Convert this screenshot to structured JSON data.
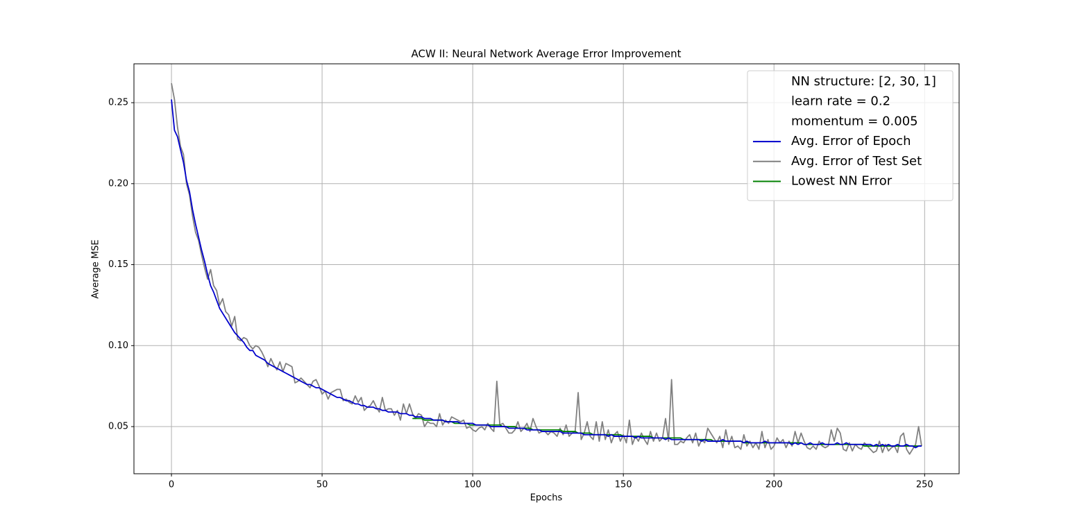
{
  "chart_data": {
    "type": "line",
    "title": "ACW II: Neural Network Average Error Improvement",
    "x_label": "Epochs",
    "y_label": "Average MSE",
    "xlim": [
      -12.45,
      261.45
    ],
    "ylim": [
      0.0209,
      0.274
    ],
    "xticks": [
      0,
      50,
      100,
      150,
      200,
      250
    ],
    "yticks": [
      {
        "value": 0.05,
        "label": "0.05"
      },
      {
        "value": 0.1,
        "label": "0.10"
      },
      {
        "value": 0.15,
        "label": "0.15"
      },
      {
        "value": 0.2,
        "label": "0.20"
      },
      {
        "value": 0.25,
        "label": "0.25"
      }
    ],
    "grid": true,
    "legend": "upper right",
    "legend_notes": [
      "NN structure: [2, 30, 1]",
      "learn rate = 0.2",
      "momentum = 0.005"
    ],
    "x": [
      0,
      1,
      2,
      3,
      4,
      5,
      6,
      7,
      8,
      9,
      10,
      11,
      12,
      13,
      14,
      15,
      16,
      17,
      18,
      19,
      20,
      21,
      22,
      23,
      24,
      25,
      26,
      27,
      28,
      29,
      30,
      31,
      32,
      33,
      34,
      35,
      36,
      37,
      38,
      39,
      40,
      41,
      42,
      43,
      44,
      45,
      46,
      47,
      48,
      49,
      50,
      51,
      52,
      53,
      54,
      55,
      56,
      57,
      58,
      59,
      60,
      61,
      62,
      63,
      64,
      65,
      66,
      67,
      68,
      69,
      70,
      71,
      72,
      73,
      74,
      75,
      76,
      77,
      78,
      79,
      80,
      81,
      82,
      83,
      84,
      85,
      86,
      87,
      88,
      89,
      90,
      91,
      92,
      93,
      94,
      95,
      96,
      97,
      98,
      99,
      100,
      101,
      102,
      103,
      104,
      105,
      106,
      107,
      108,
      109,
      110,
      111,
      112,
      113,
      114,
      115,
      116,
      117,
      118,
      119,
      120,
      121,
      122,
      123,
      124,
      125,
      126,
      127,
      128,
      129,
      130,
      131,
      132,
      133,
      134,
      135,
      136,
      137,
      138,
      139,
      140,
      141,
      142,
      143,
      144,
      145,
      146,
      147,
      148,
      149,
      150,
      151,
      152,
      153,
      154,
      155,
      156,
      157,
      158,
      159,
      160,
      161,
      162,
      163,
      164,
      165,
      166,
      167,
      168,
      169,
      170,
      171,
      172,
      173,
      174,
      175,
      176,
      177,
      178,
      179,
      180,
      181,
      182,
      183,
      184,
      185,
      186,
      187,
      188,
      189,
      190,
      191,
      192,
      193,
      194,
      195,
      196,
      197,
      198,
      199,
      200,
      201,
      202,
      203,
      204,
      205,
      206,
      207,
      208,
      209,
      210,
      211,
      212,
      213,
      214,
      215,
      216,
      217,
      218,
      219,
      220,
      221,
      222,
      223,
      224,
      225,
      226,
      227,
      228,
      229,
      230,
      231,
      232,
      233,
      234,
      235,
      236,
      237,
      238,
      239,
      240,
      241,
      242,
      243,
      244,
      245,
      246,
      247,
      248,
      249
    ],
    "series": [
      {
        "name": "Avg. Error of Test Set",
        "color": "#808080",
        "values": [
          0.262,
          0.252,
          0.235,
          0.223,
          0.218,
          0.2,
          0.193,
          0.18,
          0.17,
          0.165,
          0.156,
          0.148,
          0.141,
          0.147,
          0.137,
          0.134,
          0.125,
          0.129,
          0.121,
          0.119,
          0.112,
          0.118,
          0.104,
          0.103,
          0.105,
          0.104,
          0.1,
          0.098,
          0.1,
          0.099,
          0.096,
          0.092,
          0.087,
          0.092,
          0.088,
          0.085,
          0.09,
          0.084,
          0.089,
          0.088,
          0.087,
          0.077,
          0.078,
          0.08,
          0.078,
          0.076,
          0.074,
          0.078,
          0.079,
          0.075,
          0.07,
          0.072,
          0.067,
          0.071,
          0.072,
          0.073,
          0.073,
          0.066,
          0.067,
          0.065,
          0.064,
          0.069,
          0.065,
          0.068,
          0.06,
          0.062,
          0.063,
          0.066,
          0.062,
          0.059,
          0.068,
          0.06,
          0.061,
          0.061,
          0.057,
          0.06,
          0.054,
          0.064,
          0.058,
          0.064,
          0.058,
          0.055,
          0.058,
          0.057,
          0.05,
          0.053,
          0.052,
          0.052,
          0.05,
          0.058,
          0.051,
          0.054,
          0.052,
          0.056,
          0.055,
          0.054,
          0.053,
          0.054,
          0.049,
          0.05,
          0.048,
          0.047,
          0.049,
          0.05,
          0.048,
          0.052,
          0.049,
          0.047,
          0.078,
          0.051,
          0.052,
          0.049,
          0.046,
          0.046,
          0.048,
          0.053,
          0.047,
          0.049,
          0.052,
          0.047,
          0.055,
          0.05,
          0.046,
          0.047,
          0.047,
          0.045,
          0.047,
          0.046,
          0.044,
          0.049,
          0.045,
          0.051,
          0.044,
          0.046,
          0.047,
          0.071,
          0.042,
          0.046,
          0.053,
          0.044,
          0.042,
          0.053,
          0.041,
          0.053,
          0.042,
          0.048,
          0.04,
          0.045,
          0.047,
          0.041,
          0.045,
          0.04,
          0.054,
          0.039,
          0.044,
          0.041,
          0.046,
          0.042,
          0.039,
          0.047,
          0.041,
          0.046,
          0.041,
          0.043,
          0.055,
          0.041,
          0.079,
          0.039,
          0.039,
          0.041,
          0.04,
          0.043,
          0.045,
          0.04,
          0.046,
          0.038,
          0.042,
          0.04,
          0.049,
          0.046,
          0.043,
          0.04,
          0.044,
          0.037,
          0.048,
          0.039,
          0.044,
          0.037,
          0.038,
          0.036,
          0.045,
          0.038,
          0.041,
          0.037,
          0.04,
          0.036,
          0.047,
          0.037,
          0.042,
          0.036,
          0.038,
          0.043,
          0.04,
          0.042,
          0.037,
          0.041,
          0.038,
          0.047,
          0.04,
          0.046,
          0.041,
          0.037,
          0.036,
          0.038,
          0.036,
          0.041,
          0.038,
          0.037,
          0.038,
          0.048,
          0.041,
          0.049,
          0.046,
          0.036,
          0.035,
          0.04,
          0.035,
          0.039,
          0.037,
          0.036,
          0.04,
          0.038,
          0.036,
          0.034,
          0.035,
          0.041,
          0.034,
          0.039,
          0.035,
          0.037,
          0.038,
          0.034,
          0.044,
          0.046,
          0.036,
          0.033,
          0.036,
          0.039,
          0.05,
          0.038
        ]
      },
      {
        "name": "Lowest NN Error",
        "color": "#008000",
        "values": [
          null,
          null,
          null,
          null,
          null,
          null,
          null,
          null,
          null,
          null,
          null,
          null,
          null,
          null,
          null,
          null,
          null,
          null,
          null,
          null,
          null,
          null,
          null,
          null,
          null,
          null,
          null,
          null,
          null,
          null,
          null,
          null,
          null,
          null,
          null,
          null,
          null,
          null,
          null,
          null,
          null,
          null,
          null,
          null,
          null,
          null,
          null,
          null,
          null,
          null,
          null,
          null,
          null,
          null,
          null,
          null,
          null,
          null,
          null,
          null,
          null,
          null,
          null,
          null,
          null,
          null,
          null,
          null,
          null,
          null,
          null,
          null,
          null,
          null,
          null,
          null,
          null,
          null,
          null,
          null,
          0.055,
          0.055,
          0.055,
          0.055,
          0.054,
          0.054,
          0.054,
          0.054,
          0.054,
          0.054,
          0.054,
          0.053,
          0.053,
          0.053,
          0.052,
          0.052,
          0.052,
          0.052,
          0.052,
          0.051,
          0.051,
          0.051,
          0.051,
          0.051,
          0.051,
          0.051,
          0.051,
          0.051,
          0.051,
          0.051,
          0.05,
          0.05,
          0.05,
          0.05,
          0.05,
          0.049,
          0.049,
          0.049,
          0.049,
          0.049,
          0.048,
          0.048,
          0.048,
          0.048,
          0.048,
          0.048,
          0.048,
          0.048,
          0.048,
          0.048,
          0.047,
          0.047,
          0.047,
          0.047,
          0.047,
          0.046,
          0.046,
          0.046,
          0.046,
          0.046,
          0.045,
          0.045,
          0.045,
          0.045,
          0.045,
          0.045,
          0.045,
          0.045,
          0.045,
          0.045,
          0.044,
          0.044,
          0.044,
          0.044,
          0.044,
          0.044,
          0.044,
          0.044,
          0.044,
          0.044,
          0.043,
          0.043,
          0.043,
          0.043,
          0.043,
          0.043,
          0.043,
          0.043,
          0.043,
          0.043,
          0.042,
          0.042,
          0.042,
          0.042,
          0.042,
          0.042,
          0.042,
          0.042,
          0.042,
          0.042,
          0.041,
          0.041,
          0.041,
          0.041,
          0.041,
          0.041,
          0.041,
          0.041,
          0.041,
          0.041,
          0.04,
          0.04,
          0.04,
          0.04,
          0.04,
          0.04,
          0.04,
          0.04,
          0.04,
          0.04,
          0.04,
          0.04,
          0.04,
          0.04,
          0.04,
          0.04,
          0.04,
          0.04,
          0.04,
          0.04,
          0.039,
          0.039,
          0.039,
          0.039,
          0.039,
          0.039,
          0.039,
          0.039,
          0.039,
          0.039,
          0.039,
          0.039,
          0.039,
          0.039,
          0.039,
          0.039,
          0.039,
          0.039,
          0.039,
          0.039,
          0.038,
          0.038,
          0.038,
          0.038,
          0.038,
          0.038,
          0.038,
          0.038,
          0.038,
          0.038,
          0.038,
          0.038,
          0.038,
          0.038,
          0.038,
          0.038,
          0.038,
          0.038,
          0.038,
          0.038
        ]
      },
      {
        "name": "Avg. Error of Epoch",
        "color": "#0000cc",
        "values": [
          0.252,
          0.233,
          0.229,
          0.221,
          0.213,
          0.202,
          0.195,
          0.184,
          0.175,
          0.167,
          0.159,
          0.152,
          0.144,
          0.137,
          0.133,
          0.128,
          0.123,
          0.12,
          0.117,
          0.114,
          0.111,
          0.108,
          0.106,
          0.104,
          0.102,
          0.099,
          0.097,
          0.097,
          0.094,
          0.093,
          0.092,
          0.091,
          0.089,
          0.088,
          0.087,
          0.086,
          0.085,
          0.084,
          0.083,
          0.082,
          0.081,
          0.08,
          0.079,
          0.078,
          0.077,
          0.076,
          0.076,
          0.075,
          0.074,
          0.074,
          0.073,
          0.072,
          0.071,
          0.07,
          0.069,
          0.068,
          0.068,
          0.067,
          0.066,
          0.066,
          0.065,
          0.064,
          0.064,
          0.063,
          0.063,
          0.062,
          0.062,
          0.062,
          0.061,
          0.061,
          0.06,
          0.06,
          0.059,
          0.059,
          0.059,
          0.059,
          0.058,
          0.058,
          0.058,
          0.057,
          0.057,
          0.056,
          0.056,
          0.056,
          0.055,
          0.055,
          0.055,
          0.054,
          0.054,
          0.054,
          0.054,
          0.053,
          0.053,
          0.053,
          0.053,
          0.053,
          0.052,
          0.052,
          0.052,
          0.052,
          0.052,
          0.051,
          0.051,
          0.051,
          0.051,
          0.051,
          0.05,
          0.05,
          0.05,
          0.05,
          0.05,
          0.05,
          0.049,
          0.049,
          0.049,
          0.049,
          0.049,
          0.049,
          0.048,
          0.048,
          0.048,
          0.048,
          0.048,
          0.047,
          0.047,
          0.047,
          0.047,
          0.047,
          0.047,
          0.047,
          0.046,
          0.046,
          0.046,
          0.046,
          0.046,
          0.046,
          0.046,
          0.045,
          0.045,
          0.045,
          0.045,
          0.045,
          0.045,
          0.045,
          0.045,
          0.044,
          0.045,
          0.044,
          0.044,
          0.044,
          0.044,
          0.044,
          0.044,
          0.044,
          0.043,
          0.044,
          0.043,
          0.043,
          0.043,
          0.043,
          0.043,
          0.043,
          0.043,
          0.043,
          0.042,
          0.043,
          0.042,
          0.042,
          0.042,
          0.042,
          0.042,
          0.042,
          0.042,
          0.042,
          0.042,
          0.042,
          0.041,
          0.042,
          0.041,
          0.041,
          0.041,
          0.041,
          0.041,
          0.042,
          0.041,
          0.041,
          0.041,
          0.041,
          0.041,
          0.041,
          0.04,
          0.041,
          0.04,
          0.04,
          0.04,
          0.04,
          0.04,
          0.041,
          0.04,
          0.04,
          0.04,
          0.04,
          0.04,
          0.04,
          0.04,
          0.04,
          0.039,
          0.04,
          0.039,
          0.04,
          0.039,
          0.039,
          0.04,
          0.039,
          0.039,
          0.039,
          0.04,
          0.039,
          0.039,
          0.039,
          0.039,
          0.04,
          0.039,
          0.039,
          0.04,
          0.039,
          0.039,
          0.039,
          0.039,
          0.039,
          0.039,
          0.039,
          0.039,
          0.038,
          0.039,
          0.038,
          0.039,
          0.038,
          0.039,
          0.038,
          0.038,
          0.039,
          0.038,
          0.038,
          0.039,
          0.038,
          0.038,
          0.037,
          0.038,
          0.038
        ]
      }
    ]
  }
}
